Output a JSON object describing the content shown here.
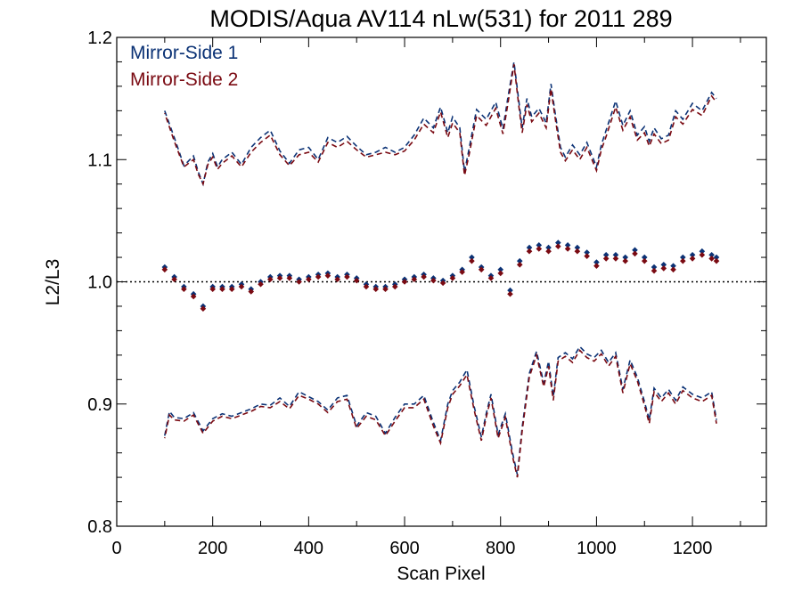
{
  "chart_data": {
    "type": "scatter",
    "title": "MODIS/Aqua AV114 nLw(531) for 2011 289",
    "xlabel": "Scan Pixel",
    "ylabel": "L2/L3",
    "xlim": [
      0,
      1354
    ],
    "ylim": [
      0.8,
      1.2
    ],
    "x_ticks": [
      0,
      200,
      400,
      600,
      800,
      1000,
      1200
    ],
    "y_ticks": [
      0.8,
      0.9,
      1.0,
      1.1,
      1.2
    ],
    "x_tick_labels": [
      "0",
      "200",
      "400",
      "600",
      "800",
      "1000",
      "1200"
    ],
    "y_tick_labels": [
      "0.8",
      "0.9",
      "1.0",
      "1.1",
      "1.2"
    ],
    "reference_line": 1.0,
    "legend_position": "top-left",
    "colors": {
      "ms1": "#0b3275",
      "ms2": "#7a0a12"
    },
    "series": [
      {
        "name": "Mirror-Side 1",
        "color": "#0b3275",
        "upper": {
          "x": [
            100,
            120,
            140,
            160,
            170,
            180,
            190,
            200,
            210,
            220,
            240,
            260,
            280,
            300,
            320,
            340,
            360,
            380,
            400,
            420,
            440,
            460,
            480,
            500,
            520,
            540,
            560,
            580,
            600,
            620,
            640,
            660,
            675,
            690,
            700,
            715,
            725,
            735,
            750,
            770,
            790,
            805,
            815,
            828,
            838,
            845,
            855,
            865,
            880,
            895,
            905,
            913,
            925,
            935,
            950,
            965,
            980,
            1000,
            1010,
            1020,
            1040,
            1055,
            1070,
            1085,
            1100,
            1110,
            1120,
            1135,
            1150,
            1165,
            1180,
            1200,
            1220,
            1240,
            1250
          ],
          "y": [
            1.14,
            1.118,
            1.095,
            1.103,
            1.09,
            1.08,
            1.098,
            1.105,
            1.094,
            1.1,
            1.106,
            1.096,
            1.11,
            1.118,
            1.124,
            1.107,
            1.097,
            1.108,
            1.11,
            1.1,
            1.118,
            1.114,
            1.119,
            1.111,
            1.104,
            1.106,
            1.11,
            1.106,
            1.11,
            1.12,
            1.134,
            1.126,
            1.143,
            1.122,
            1.135,
            1.126,
            1.09,
            1.11,
            1.141,
            1.133,
            1.147,
            1.125,
            1.15,
            1.18,
            1.148,
            1.126,
            1.15,
            1.135,
            1.142,
            1.13,
            1.162,
            1.14,
            1.11,
            1.102,
            1.112,
            1.104,
            1.114,
            1.094,
            1.112,
            1.124,
            1.148,
            1.128,
            1.14,
            1.12,
            1.127,
            1.115,
            1.126,
            1.117,
            1.12,
            1.14,
            1.133,
            1.146,
            1.14,
            1.155,
            1.15
          ]
        },
        "lower": {
          "x": [
            100,
            110,
            120,
            140,
            160,
            180,
            200,
            220,
            240,
            260,
            280,
            300,
            320,
            340,
            360,
            380,
            400,
            420,
            440,
            460,
            480,
            500,
            520,
            540,
            560,
            580,
            600,
            620,
            640,
            660,
            675,
            690,
            700,
            715,
            730,
            745,
            760,
            770,
            780,
            795,
            810,
            825,
            835,
            845,
            860,
            875,
            890,
            900,
            910,
            920,
            935,
            950,
            965,
            980,
            995,
            1010,
            1025,
            1040,
            1055,
            1070,
            1085,
            1100,
            1110,
            1120,
            1135,
            1150,
            1165,
            1180,
            1200,
            1220,
            1240,
            1250
          ],
          "y": [
            0.874,
            0.894,
            0.889,
            0.888,
            0.893,
            0.878,
            0.888,
            0.892,
            0.89,
            0.893,
            0.896,
            0.9,
            0.899,
            0.905,
            0.898,
            0.91,
            0.906,
            0.902,
            0.895,
            0.905,
            0.907,
            0.882,
            0.893,
            0.89,
            0.876,
            0.889,
            0.9,
            0.9,
            0.907,
            0.885,
            0.87,
            0.9,
            0.911,
            0.918,
            0.928,
            0.898,
            0.873,
            0.892,
            0.908,
            0.875,
            0.892,
            0.86,
            0.842,
            0.881,
            0.925,
            0.943,
            0.917,
            0.935,
            0.906,
            0.938,
            0.942,
            0.937,
            0.947,
            0.941,
            0.938,
            0.944,
            0.934,
            0.942,
            0.912,
            0.936,
            0.922,
            0.902,
            0.887,
            0.913,
            0.905,
            0.912,
            0.903,
            0.914,
            0.908,
            0.905,
            0.91,
            0.887
          ]
        },
        "points": {
          "x": [
            100,
            120,
            140,
            160,
            180,
            200,
            220,
            240,
            260,
            280,
            300,
            320,
            340,
            360,
            380,
            400,
            420,
            440,
            460,
            480,
            500,
            520,
            540,
            560,
            580,
            600,
            620,
            640,
            660,
            680,
            700,
            720,
            740,
            760,
            780,
            800,
            820,
            840,
            860,
            880,
            900,
            920,
            940,
            960,
            980,
            1000,
            1020,
            1040,
            1060,
            1080,
            1100,
            1120,
            1140,
            1160,
            1180,
            1200,
            1220,
            1240,
            1250
          ],
          "y": [
            1.012,
            1.004,
            0.996,
            0.99,
            0.98,
            0.996,
            0.996,
            0.996,
            0.998,
            0.994,
            1.0,
            1.004,
            1.005,
            1.005,
            1.002,
            1.004,
            1.006,
            1.007,
            1.004,
            1.006,
            1.003,
            0.998,
            0.996,
            0.996,
            0.998,
            1.002,
            1.004,
            1.006,
            1.003,
            1.001,
            1.005,
            1.01,
            1.02,
            1.012,
            1.005,
            1.01,
            0.993,
            1.017,
            1.028,
            1.03,
            1.028,
            1.032,
            1.03,
            1.028,
            1.024,
            1.016,
            1.022,
            1.022,
            1.02,
            1.026,
            1.02,
            1.012,
            1.014,
            1.013,
            1.02,
            1.022,
            1.025,
            1.022,
            1.02
          ]
        }
      },
      {
        "name": "Mirror-Side 2",
        "color": "#7a0a12",
        "upper": {
          "x": [
            100,
            120,
            140,
            160,
            170,
            180,
            190,
            200,
            210,
            220,
            240,
            260,
            280,
            300,
            320,
            340,
            360,
            380,
            400,
            420,
            440,
            460,
            480,
            500,
            520,
            540,
            560,
            580,
            600,
            620,
            640,
            660,
            675,
            690,
            700,
            715,
            725,
            735,
            750,
            770,
            790,
            805,
            815,
            828,
            838,
            845,
            855,
            865,
            880,
            895,
            905,
            913,
            925,
            935,
            950,
            965,
            980,
            1000,
            1010,
            1020,
            1040,
            1055,
            1070,
            1085,
            1100,
            1110,
            1120,
            1135,
            1150,
            1165,
            1180,
            1200,
            1220,
            1240,
            1250
          ],
          "y": [
            1.138,
            1.115,
            1.094,
            1.1,
            1.088,
            1.08,
            1.096,
            1.102,
            1.092,
            1.097,
            1.103,
            1.094,
            1.106,
            1.114,
            1.12,
            1.104,
            1.095,
            1.104,
            1.106,
            1.098,
            1.114,
            1.11,
            1.115,
            1.108,
            1.102,
            1.104,
            1.106,
            1.104,
            1.107,
            1.116,
            1.129,
            1.122,
            1.139,
            1.118,
            1.13,
            1.122,
            1.087,
            1.105,
            1.136,
            1.128,
            1.142,
            1.121,
            1.145,
            1.178,
            1.144,
            1.122,
            1.145,
            1.131,
            1.138,
            1.126,
            1.158,
            1.136,
            1.106,
            1.099,
            1.108,
            1.1,
            1.11,
            1.091,
            1.108,
            1.119,
            1.143,
            1.124,
            1.135,
            1.116,
            1.122,
            1.111,
            1.121,
            1.113,
            1.116,
            1.135,
            1.129,
            1.141,
            1.136,
            1.152,
            1.147
          ]
        },
        "lower": {
          "x": [
            100,
            110,
            120,
            140,
            160,
            180,
            200,
            220,
            240,
            260,
            280,
            300,
            320,
            340,
            360,
            380,
            400,
            420,
            440,
            460,
            480,
            500,
            520,
            540,
            560,
            580,
            600,
            620,
            640,
            660,
            675,
            690,
            700,
            715,
            730,
            745,
            760,
            770,
            780,
            795,
            810,
            825,
            835,
            845,
            860,
            875,
            890,
            900,
            910,
            920,
            935,
            950,
            965,
            980,
            995,
            1010,
            1025,
            1040,
            1055,
            1070,
            1085,
            1100,
            1110,
            1120,
            1135,
            1150,
            1165,
            1180,
            1200,
            1220,
            1240,
            1250
          ],
          "y": [
            0.872,
            0.891,
            0.887,
            0.886,
            0.891,
            0.876,
            0.886,
            0.89,
            0.888,
            0.891,
            0.894,
            0.898,
            0.897,
            0.902,
            0.896,
            0.907,
            0.904,
            0.9,
            0.893,
            0.902,
            0.904,
            0.88,
            0.89,
            0.887,
            0.874,
            0.886,
            0.897,
            0.897,
            0.904,
            0.882,
            0.868,
            0.897,
            0.908,
            0.915,
            0.924,
            0.895,
            0.87,
            0.889,
            0.905,
            0.872,
            0.889,
            0.857,
            0.84,
            0.878,
            0.922,
            0.94,
            0.914,
            0.931,
            0.903,
            0.935,
            0.939,
            0.934,
            0.944,
            0.938,
            0.935,
            0.941,
            0.931,
            0.939,
            0.909,
            0.933,
            0.919,
            0.899,
            0.884,
            0.91,
            0.902,
            0.909,
            0.9,
            0.911,
            0.905,
            0.902,
            0.907,
            0.884
          ]
        },
        "points": {
          "x": [
            100,
            120,
            140,
            160,
            180,
            200,
            220,
            240,
            260,
            280,
            300,
            320,
            340,
            360,
            380,
            400,
            420,
            440,
            460,
            480,
            500,
            520,
            540,
            560,
            580,
            600,
            620,
            640,
            660,
            680,
            700,
            720,
            740,
            760,
            780,
            800,
            820,
            840,
            860,
            880,
            900,
            920,
            940,
            960,
            980,
            1000,
            1020,
            1040,
            1060,
            1080,
            1100,
            1120,
            1140,
            1160,
            1180,
            1200,
            1220,
            1240,
            1250
          ],
          "y": [
            1.01,
            1.002,
            0.994,
            0.988,
            0.978,
            0.994,
            0.994,
            0.994,
            0.996,
            0.992,
            0.998,
            1.002,
            1.003,
            1.003,
            1.0,
            1.002,
            1.004,
            1.005,
            1.002,
            1.004,
            1.001,
            0.996,
            0.994,
            0.994,
            0.996,
            1.0,
            1.002,
            1.004,
            1.001,
            0.999,
            1.003,
            1.008,
            1.017,
            1.01,
            1.003,
            1.007,
            0.99,
            1.014,
            1.025,
            1.027,
            1.025,
            1.029,
            1.027,
            1.025,
            1.021,
            1.013,
            1.019,
            1.019,
            1.017,
            1.023,
            1.017,
            1.009,
            1.011,
            1.01,
            1.017,
            1.019,
            1.022,
            1.019,
            1.017
          ]
        }
      }
    ]
  }
}
